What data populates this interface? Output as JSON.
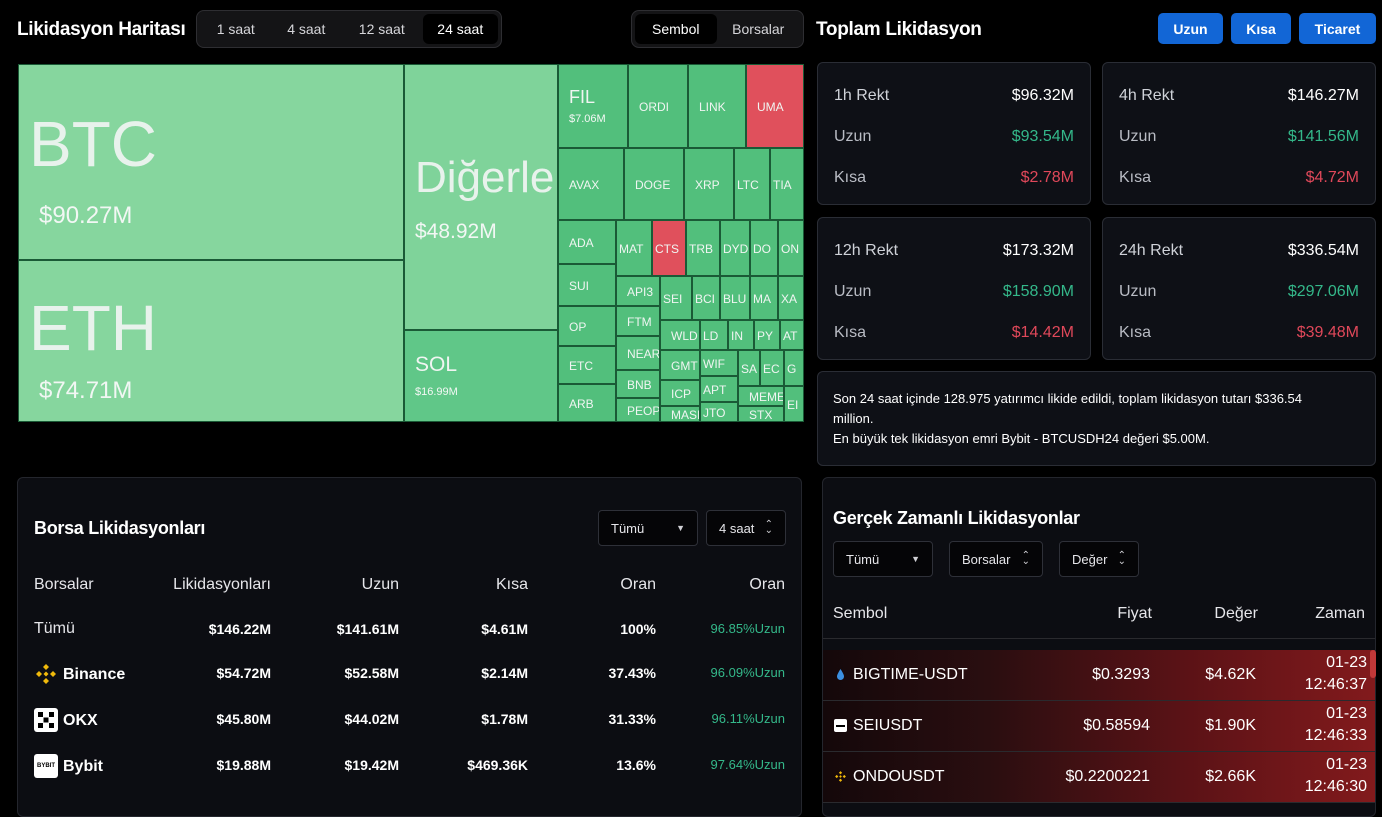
{
  "header": {
    "title": "Likidasyon Haritası",
    "time_tabs": [
      "1 saat",
      "4 saat",
      "12 saat",
      "24 saat"
    ],
    "active_time_tab": "24 saat",
    "view_tabs": [
      "Sembol",
      "Borsalar"
    ],
    "active_view_tab": "Sembol",
    "total_title": "Toplam Likidasyon",
    "buttons": {
      "long": "Uzun",
      "short": "Kısa",
      "trade": "Ticaret"
    }
  },
  "chart_data": {
    "type": "treemap",
    "items": [
      {
        "symbol": "BTC",
        "value_label": "$90.27M",
        "value_musd": 90.27,
        "color": "#86d69e"
      },
      {
        "symbol": "ETH",
        "value_label": "$74.71M",
        "value_musd": 74.71,
        "color": "#86d69e"
      },
      {
        "symbol": "Diğerleri",
        "value_label": "$48.92M",
        "value_musd": 48.92,
        "color": "#7fd39a"
      },
      {
        "symbol": "SOL",
        "value_label": "$16.99M",
        "value_musd": 16.99,
        "color": "#60c788"
      },
      {
        "symbol": "FIL",
        "value_label": "$7.06M",
        "value_musd": 7.06,
        "color": "#52bf7c"
      },
      {
        "symbol": "ORDI",
        "color": "#52bf7c"
      },
      {
        "symbol": "LINK",
        "color": "#52bf7c"
      },
      {
        "symbol": "UMA",
        "color": "#e0505c"
      },
      {
        "symbol": "AVAX",
        "color": "#52bf7c"
      },
      {
        "symbol": "DOGE",
        "color": "#52bf7c"
      },
      {
        "symbol": "XRP",
        "color": "#52bf7c"
      },
      {
        "symbol": "LTC",
        "color": "#52bf7c"
      },
      {
        "symbol": "TIA",
        "color": "#52bf7c"
      },
      {
        "symbol": "ADA",
        "color": "#52bf7c"
      },
      {
        "symbol": "MAT",
        "color": "#52bf7c"
      },
      {
        "symbol": "CTS",
        "color": "#e0505c"
      },
      {
        "symbol": "TRB",
        "color": "#52bf7c"
      },
      {
        "symbol": "DYD",
        "color": "#52bf7c"
      },
      {
        "symbol": "DO",
        "color": "#52bf7c"
      },
      {
        "symbol": "ON",
        "color": "#52bf7c"
      },
      {
        "symbol": "SUI",
        "color": "#52bf7c"
      },
      {
        "symbol": "API3",
        "color": "#52bf7c"
      },
      {
        "symbol": "SEI",
        "color": "#52bf7c"
      },
      {
        "symbol": "BCI",
        "color": "#52bf7c"
      },
      {
        "symbol": "BLU",
        "color": "#52bf7c"
      },
      {
        "symbol": "MA",
        "color": "#52bf7c"
      },
      {
        "symbol": "XA",
        "color": "#52bf7c"
      },
      {
        "symbol": "OP",
        "color": "#52bf7c"
      },
      {
        "symbol": "FTM",
        "color": "#52bf7c"
      },
      {
        "symbol": "WLD",
        "color": "#52bf7c"
      },
      {
        "symbol": "LD",
        "color": "#52bf7c"
      },
      {
        "symbol": "IN",
        "color": "#52bf7c"
      },
      {
        "symbol": "PY",
        "color": "#52bf7c"
      },
      {
        "symbol": "AT",
        "color": "#52bf7c"
      },
      {
        "symbol": "ETC",
        "color": "#52bf7c"
      },
      {
        "symbol": "NEAR",
        "color": "#52bf7c"
      },
      {
        "symbol": "GMT",
        "color": "#52bf7c"
      },
      {
        "symbol": "WIF",
        "color": "#52bf7c"
      },
      {
        "symbol": "SA",
        "color": "#52bf7c"
      },
      {
        "symbol": "EC",
        "color": "#52bf7c"
      },
      {
        "symbol": "G",
        "color": "#52bf7c"
      },
      {
        "symbol": "BNB",
        "color": "#52bf7c"
      },
      {
        "symbol": "ICP",
        "color": "#52bf7c"
      },
      {
        "symbol": "APT",
        "color": "#52bf7c"
      },
      {
        "symbol": "MEME",
        "color": "#52bf7c"
      },
      {
        "symbol": "ARB",
        "color": "#52bf7c"
      },
      {
        "symbol": "PEOPL",
        "color": "#52bf7c"
      },
      {
        "symbol": "MASI",
        "color": "#52bf7c"
      },
      {
        "symbol": "JTO",
        "color": "#52bf7c"
      },
      {
        "symbol": "STX",
        "color": "#52bf7c"
      },
      {
        "symbol": "EI",
        "color": "#52bf7c"
      }
    ]
  },
  "rekt_cards": [
    {
      "title": "1h Rekt",
      "total": "$96.32M",
      "long_label": "Uzun",
      "long": "$93.54M",
      "short_label": "Kısa",
      "short": "$2.78M"
    },
    {
      "title": "4h Rekt",
      "total": "$146.27M",
      "long_label": "Uzun",
      "long": "$141.56M",
      "short_label": "Kısa",
      "short": "$4.72M"
    },
    {
      "title": "12h Rekt",
      "total": "$173.32M",
      "long_label": "Uzun",
      "long": "$158.90M",
      "short_label": "Kısa",
      "short": "$14.42M"
    },
    {
      "title": "24h Rekt",
      "total": "$336.54M",
      "long_label": "Uzun",
      "long": "$297.06M",
      "short_label": "Kısa",
      "short": "$39.48M"
    }
  ],
  "summary": {
    "line1": "Son 24 saat içinde 128.975 yatırımcı likide edildi, toplam likidasyon tutarı $336.54 million.",
    "line2": "En büyük tek likidasyon emri Bybit - BTCUSDH24 değeri $5.00M."
  },
  "exchange": {
    "title": "Borsa Likidasyonları",
    "filter": "Tümü",
    "period": "4 saat",
    "headers": [
      "Borsalar",
      "Likidasyonları",
      "Uzun",
      "Kısa",
      "Oran",
      "Oran"
    ],
    "rows": [
      {
        "name": "Tümü",
        "liq": "$146.22M",
        "long": "$141.61M",
        "short": "$4.61M",
        "ratio": "100%",
        "side_pct": "96.85%",
        "side": "Uzun"
      },
      {
        "name": "Binance",
        "liq": "$54.72M",
        "long": "$52.58M",
        "short": "$2.14M",
        "ratio": "37.43%",
        "side_pct": "96.09%",
        "side": "Uzun"
      },
      {
        "name": "OKX",
        "liq": "$45.80M",
        "long": "$44.02M",
        "short": "$1.78M",
        "ratio": "31.33%",
        "side_pct": "96.11%",
        "side": "Uzun"
      },
      {
        "name": "Bybit",
        "liq": "$19.88M",
        "long": "$19.42M",
        "short": "$469.36K",
        "ratio": "13.6%",
        "side_pct": "97.64%",
        "side": "Uzun"
      }
    ],
    "logos": {
      "bybit": "BYBIT"
    }
  },
  "realtime": {
    "title": "Gerçek Zamanlı Likidasyonlar",
    "filter": "Tümü",
    "exchanges": "Borsalar",
    "value": "Değer",
    "headers": [
      "Sembol",
      "Fiyat",
      "Değer",
      "Zaman"
    ],
    "rows": [
      {
        "symbol": "BIGTIME-USDT",
        "price": "$0.3293",
        "value": "$4.62K",
        "date": "01-23",
        "time": "12:46:37",
        "icon": "drop-icon"
      },
      {
        "symbol": "SEIUSDT",
        "price": "$0.58594",
        "value": "$1.90K",
        "date": "01-23",
        "time": "12:46:33",
        "icon": "bybit-icon"
      },
      {
        "symbol": "ONDOUSDT",
        "price": "$0.2200221",
        "value": "$2.66K",
        "date": "01-23",
        "time": "12:46:30",
        "icon": "binance-icon"
      }
    ]
  }
}
